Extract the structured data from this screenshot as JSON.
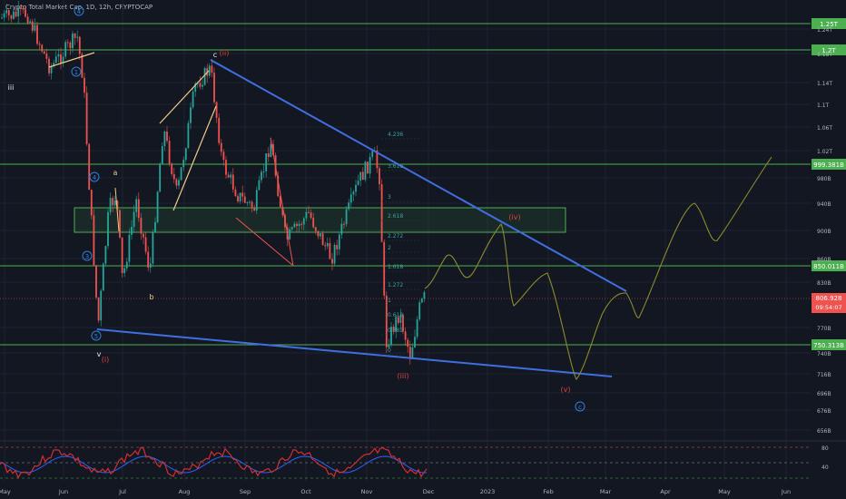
{
  "header": {
    "title": "Crypto Total Market Cap, 1D, 12h, CRYPTOCAP"
  },
  "colors": {
    "bg": "#131722",
    "grid": "#1f2330",
    "up": "#26a69a",
    "down": "#ef5350",
    "level": "#4caf50",
    "trend": "#3f6fe0",
    "wave_blue": "#2e7fd9",
    "wave_red": "#e0413b",
    "forecast": "#8b8b2c",
    "axis_text": "#b2b5be",
    "rsi": "#d32f2f",
    "rsi2": "#2962ff",
    "fib": "#3aa6a0"
  },
  "chart_data": {
    "type": "candlestick",
    "title": "Crypto Total Market Cap",
    "x_ticks": [
      "May",
      "Jun",
      "Jul",
      "Aug",
      "Sep",
      "Oct",
      "Nov",
      "Dec",
      "2023",
      "Feb",
      "Mar",
      "Apr",
      "May",
      "Jun"
    ],
    "y_ticks": [
      "1.24T",
      "1.18T",
      "1.14T",
      "1.1T",
      "1.06T",
      "1.02T",
      "980B",
      "940B",
      "900B",
      "860B",
      "830B",
      "770B",
      "740B",
      "716B",
      "696B",
      "676B",
      "656B"
    ],
    "levels": [
      {
        "value": "1.25T",
        "label": "1.25T"
      },
      {
        "value": "1.2T",
        "label": "1.2T"
      },
      {
        "value": "999.381B",
        "label": "999.381B"
      },
      {
        "value": "850.011B",
        "label": "850.011B"
      },
      {
        "value": "750.313B",
        "label": "750.313B"
      }
    ],
    "last_price": {
      "label": "806.928",
      "countdown": "09:54:07"
    },
    "fib_levels": [
      "4.236",
      "3.618",
      "3",
      "2.618",
      "2.272",
      "2",
      "1.618",
      "1.272",
      "1",
      "0.618",
      "0.382",
      "0"
    ],
    "wave_labels": [
      {
        "text": "iii",
        "kind": "black"
      },
      {
        "text": "4",
        "kind": "circle-blue"
      },
      {
        "text": "1",
        "kind": "circle-blue"
      },
      {
        "text": "4",
        "kind": "circle-blue"
      },
      {
        "text": "3",
        "kind": "circle-blue"
      },
      {
        "text": "5",
        "kind": "circle-blue"
      },
      {
        "text": "v",
        "kind": "black"
      },
      {
        "text": "(i)",
        "kind": "red"
      },
      {
        "text": "a",
        "kind": "orange"
      },
      {
        "text": "b",
        "kind": "orange"
      },
      {
        "text": "c",
        "kind": "black"
      },
      {
        "text": "(ii)",
        "kind": "red"
      },
      {
        "text": "(iii)",
        "kind": "red"
      },
      {
        "text": "(iv)",
        "kind": "red"
      },
      {
        "text": "(v)",
        "kind": "red"
      },
      {
        "text": "c",
        "kind": "circle-blue"
      }
    ],
    "rsi_ticks": [
      "80",
      "40"
    ]
  }
}
